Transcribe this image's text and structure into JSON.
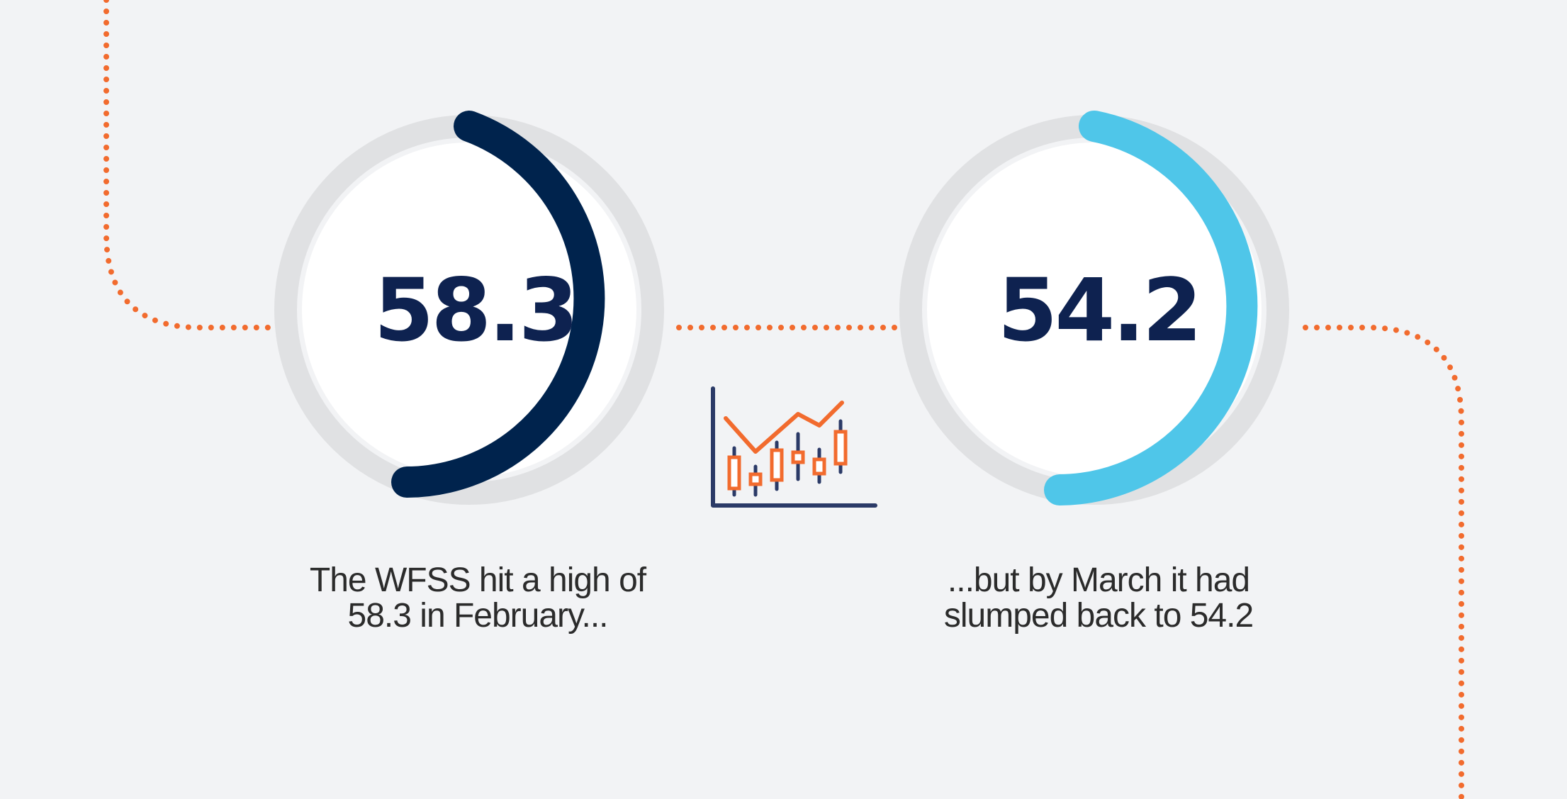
{
  "gauges": [
    {
      "value_text": "58.3",
      "value": 58.3,
      "caption_line1": "The WFSS hit a high of",
      "caption_line2": "58.3 in February...",
      "arc_color": "#00234d"
    },
    {
      "value_text": "54.2",
      "value": 54.2,
      "caption_line1": "...but by March it had",
      "caption_line2": "slumped back to 54.2",
      "arc_color": "#4fc6e9"
    }
  ],
  "colors": {
    "background": "#f2f3f5",
    "track": "#e0e1e3",
    "value_text": "#0e2250",
    "dotted_connector": "#f26b2e",
    "icon_axes": "#2b3a67",
    "icon_accent": "#f26b2e"
  },
  "icons": {
    "center": "candlestick-chart-icon"
  }
}
